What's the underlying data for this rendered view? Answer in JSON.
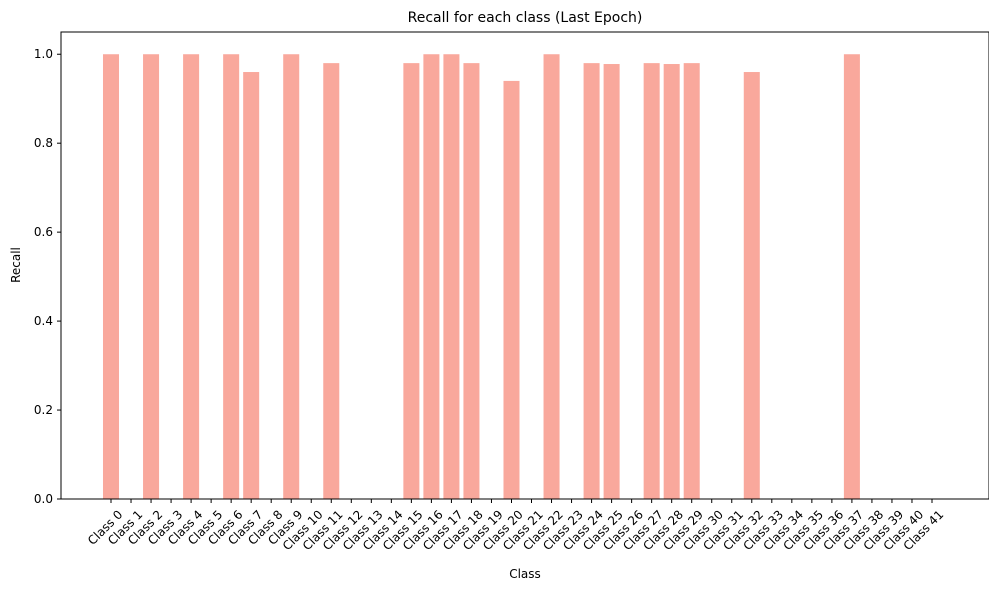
{
  "chart_data": {
    "type": "bar",
    "title": "Recall for each class (Last Epoch)",
    "xlabel": "Class",
    "ylabel": "Recall",
    "ylim": [
      0,
      1.05
    ],
    "yticks": [
      "0.0",
      "0.2",
      "0.4",
      "0.6",
      "0.8",
      "1.0"
    ],
    "bar_color": "#f9a89c",
    "grid": false,
    "categories": [
      "Class 0",
      "Class 1",
      "Class 2",
      "Class 3",
      "Class 4",
      "Class 5",
      "Class 6",
      "Class 7",
      "Class 8",
      "Class 9",
      "Class 10",
      "Class 11",
      "Class 12",
      "Class 13",
      "Class 14",
      "Class 15",
      "Class 16",
      "Class 17",
      "Class 18",
      "Class 19",
      "Class 20",
      "Class 21",
      "Class 22",
      "Class 23",
      "Class 24",
      "Class 25",
      "Class 26",
      "Class 27",
      "Class 28",
      "Class 29",
      "Class 30",
      "Class 31",
      "Class 32",
      "Class 33",
      "Class 34",
      "Class 35",
      "Class 36",
      "Class 37",
      "Class 38",
      "Class 39",
      "Class 40",
      "Class 41"
    ],
    "values": [
      1.0,
      0,
      1.0,
      0,
      1.0,
      0,
      1.0,
      0.96,
      0,
      1.0,
      0,
      0.98,
      0,
      0,
      0,
      0.98,
      1.0,
      1.0,
      0.98,
      0,
      0.94,
      0,
      1.0,
      0,
      0.98,
      0.978,
      0,
      0.98,
      0.978,
      0.98,
      0,
      0,
      0.96,
      0,
      0,
      0,
      0,
      1.0,
      0,
      0,
      0,
      0
    ]
  }
}
